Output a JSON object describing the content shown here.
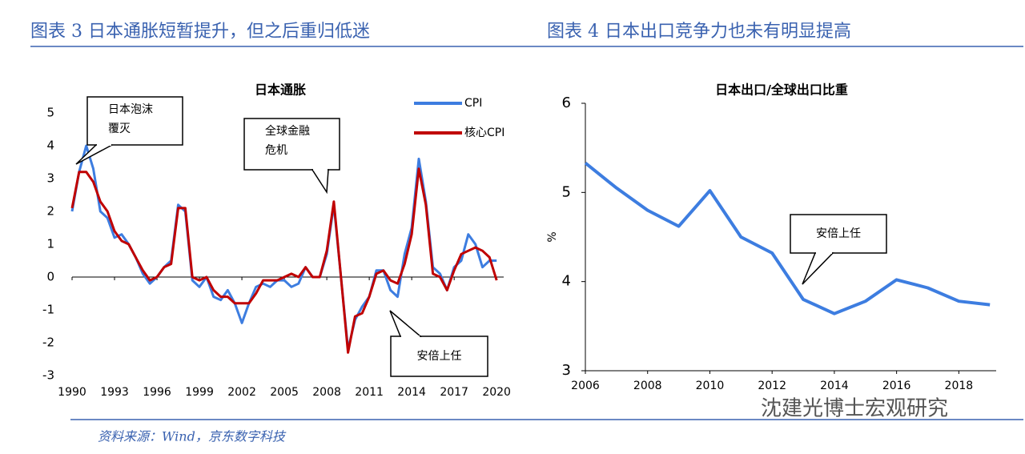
{
  "header": {
    "left": "图表 3  日本通胀短暂提升，但之后重归低迷",
    "right": "图表 4  日本出口竞争力也未有明显提高"
  },
  "chart_data": [
    {
      "type": "line",
      "title": "日本通胀",
      "x": [
        1990,
        1990.5,
        1991,
        1991.5,
        1992,
        1992.5,
        1993,
        1993.5,
        1994,
        1994.5,
        1995,
        1995.5,
        1996,
        1996.5,
        1997,
        1997.5,
        1998,
        1998.5,
        1999,
        1999.5,
        2000,
        2000.5,
        2001,
        2001.5,
        2002,
        2002.5,
        2003,
        2003.5,
        2004,
        2004.5,
        2005,
        2005.5,
        2006,
        2006.5,
        2007,
        2007.5,
        2008,
        2008.5,
        2009,
        2009.5,
        2010,
        2010.5,
        2011,
        2011.5,
        2012,
        2012.5,
        2013,
        2013.5,
        2014,
        2014.5,
        2015,
        2015.5,
        2016,
        2016.5,
        2017,
        2017.5,
        2018,
        2018.5,
        2019,
        2019.5,
        2020
      ],
      "series": [
        {
          "name": "CPI",
          "color": "#3d7de0",
          "values": [
            2.0,
            3.2,
            4.0,
            3.3,
            2.0,
            1.8,
            1.2,
            1.3,
            1.0,
            0.6,
            0.1,
            -0.2,
            0.0,
            0.3,
            0.5,
            2.2,
            2.0,
            -0.1,
            -0.3,
            0.0,
            -0.6,
            -0.7,
            -0.4,
            -0.8,
            -1.4,
            -0.8,
            -0.3,
            -0.2,
            -0.3,
            -0.1,
            -0.1,
            -0.3,
            -0.2,
            0.3,
            0.0,
            0.0,
            0.7,
            2.2,
            0.0,
            -2.2,
            -1.3,
            -0.9,
            -0.6,
            0.2,
            0.2,
            -0.4,
            -0.6,
            0.7,
            1.5,
            3.6,
            2.3,
            0.3,
            0.1,
            -0.4,
            0.3,
            0.5,
            1.3,
            1.0,
            0.3,
            0.5,
            0.5
          ]
        },
        {
          "name": "核心CPI",
          "color": "#c00000",
          "values": [
            2.1,
            3.2,
            3.2,
            2.9,
            2.3,
            2.0,
            1.4,
            1.1,
            1.0,
            0.6,
            0.2,
            -0.1,
            0.0,
            0.3,
            0.4,
            2.1,
            2.1,
            0.0,
            -0.1,
            0.0,
            -0.4,
            -0.6,
            -0.6,
            -0.8,
            -0.8,
            -0.8,
            -0.5,
            -0.1,
            -0.1,
            -0.1,
            0.0,
            0.1,
            0.0,
            0.3,
            0.0,
            0.0,
            0.8,
            2.3,
            0.0,
            -2.3,
            -1.2,
            -1.1,
            -0.6,
            0.1,
            0.2,
            -0.1,
            -0.2,
            0.4,
            1.3,
            3.3,
            2.2,
            0.1,
            0.0,
            -0.4,
            0.2,
            0.7,
            0.8,
            0.9,
            0.8,
            0.6,
            -0.1
          ]
        }
      ],
      "xlim": [
        1990,
        2020.5
      ],
      "xticks": [
        1990,
        1993,
        1996,
        1999,
        2002,
        2005,
        2008,
        2011,
        2014,
        2017,
        2020
      ],
      "ylim": [
        -3,
        5
      ],
      "yticks": [
        -3,
        -2,
        -1,
        0,
        1,
        2,
        3,
        4,
        5
      ],
      "annotations": [
        [
          "日本泡沫",
          "覆灭"
        ],
        [
          "全球金融",
          "危机"
        ],
        [
          "安倍上任"
        ]
      ]
    },
    {
      "type": "line",
      "title": "日本出口/全球出口比重",
      "y_label": "%",
      "x": [
        2006,
        2007,
        2008,
        2009,
        2010,
        2011,
        2012,
        2013,
        2014,
        2015,
        2016,
        2017,
        2018,
        2019
      ],
      "values": [
        5.33,
        5.05,
        4.8,
        4.62,
        5.02,
        4.5,
        4.32,
        3.8,
        3.64,
        3.78,
        4.02,
        3.93,
        3.78,
        3.74
      ],
      "color": "#3d7de0",
      "xlim": [
        2006,
        2019.2
      ],
      "xticks": [
        2006,
        2008,
        2010,
        2012,
        2014,
        2016,
        2018
      ],
      "ylim": [
        3,
        6
      ],
      "yticks": [
        3,
        4,
        5,
        6
      ],
      "annotations": [
        [
          "安倍上任"
        ]
      ]
    }
  ],
  "source": "资料来源：Wind，京东数字科技",
  "watermark": "沈建光博士宏观研究"
}
